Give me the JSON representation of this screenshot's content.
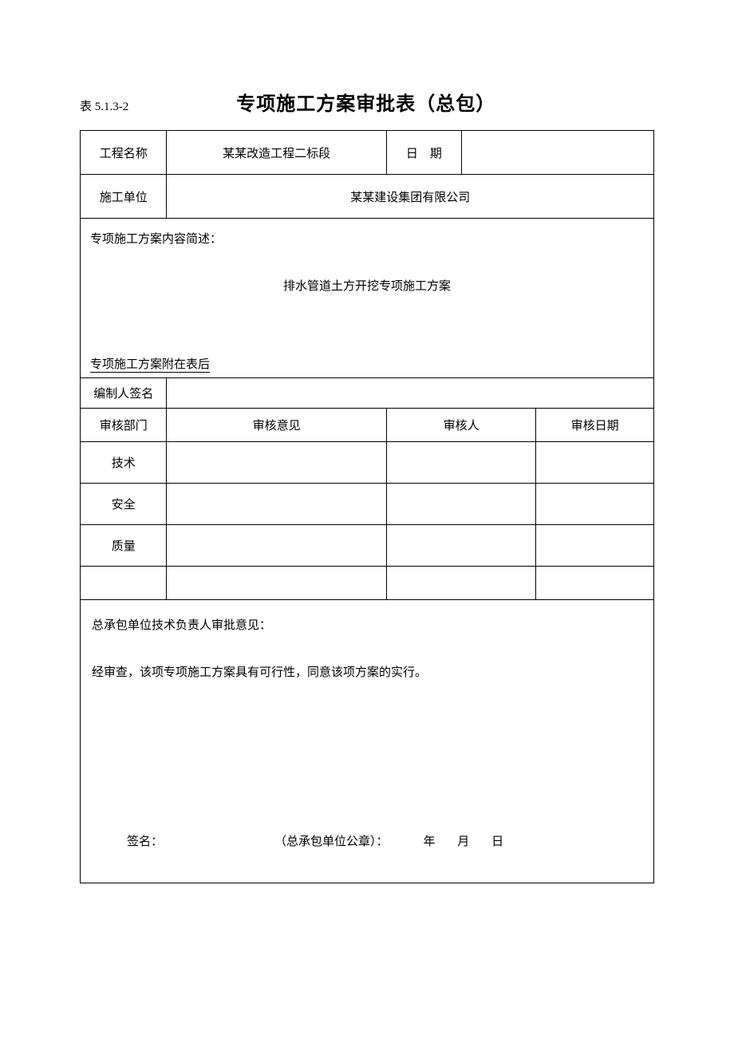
{
  "header": {
    "table_number": "表 5.1.3-2",
    "title": "专项施工方案审批表（总包）"
  },
  "info": {
    "project_name_label": "工程名称",
    "project_name_value": "某某改造工程二标段",
    "date_label": "日　期",
    "date_value": "",
    "construction_unit_label": "施工单位",
    "construction_unit_value": "某某建设集团有限公司"
  },
  "content": {
    "section_label": "专项施工方案内容简述：",
    "body": "排水管道土方开挖专项施工方案",
    "footer": "专项施工方案附在表后"
  },
  "compiler": {
    "label": "编制人签名",
    "value": ""
  },
  "review": {
    "headers": {
      "dept": "审核部门",
      "opinion": "审核意见",
      "person": "审核人",
      "date": "审核日期"
    },
    "rows": [
      {
        "dept": "技术",
        "opinion": "",
        "person": "",
        "date": ""
      },
      {
        "dept": "安全",
        "opinion": "",
        "person": "",
        "date": ""
      },
      {
        "dept": "质量",
        "opinion": "",
        "person": "",
        "date": ""
      },
      {
        "dept": "",
        "opinion": "",
        "person": "",
        "date": ""
      }
    ]
  },
  "approval": {
    "title": "总承包单位技术负责人审批意见：",
    "text": "经审查，该项专项施工方案具有可行性，同意该项方案的实行。",
    "signature_label": "签名：",
    "stamp_label": "（总承包单位公章）：",
    "date_year": "年",
    "date_month": "月",
    "date_day": "日"
  },
  "layout": {
    "col_widths": {
      "c1": "110px",
      "c2": "280px",
      "c3": "95px",
      "c4": "95px",
      "c5": "150px"
    }
  }
}
